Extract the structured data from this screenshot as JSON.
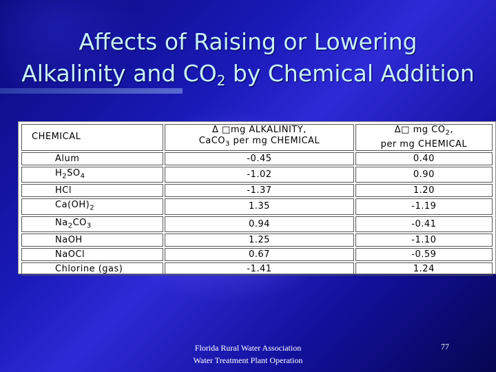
{
  "title": {
    "line1": "Affects of Raising or Lowering",
    "line2_pre": "Alkalinity and CO",
    "line2_sub": "2",
    "line2_post": " by Chemical Addition"
  },
  "table": {
    "headers": {
      "chemical": "CHEMICAL",
      "alkalinity_line1": "Δ □mg ALKALINITY,",
      "alkalinity_line2_pre": "CaCO",
      "alkalinity_line2_sub": "3",
      "alkalinity_line2_post": " per mg CHEMICAL",
      "co2_line1_pre": "Δ□ mg CO",
      "co2_line1_sub": "2",
      "co2_line1_post": ",",
      "co2_line2": "per mg CHEMICAL"
    },
    "rows": [
      {
        "chemical": "Alum",
        "alkalinity": "-0.45",
        "co2": "0.40"
      },
      {
        "chemical_pre": "H",
        "chemical_sub1": "2",
        "chemical_mid": "SO",
        "chemical_sub2": "4",
        "alkalinity": "-1.02",
        "co2": "0.90"
      },
      {
        "chemical": "HCl",
        "alkalinity": "-1.37",
        "co2": "1.20"
      },
      {
        "chemical_pre": "Ca(OH)",
        "chemical_sub1": "2",
        "alkalinity": "1.35",
        "co2": "-1.19"
      },
      {
        "chemical_pre": "Na",
        "chemical_sub1": "2",
        "chemical_mid": "CO",
        "chemical_sub2": "3",
        "alkalinity": "0.94",
        "co2": "-0.41"
      },
      {
        "chemical": "NaOH",
        "alkalinity": "1.25",
        "co2": "-1.10"
      },
      {
        "chemical": "NaOCl",
        "alkalinity": "0.67",
        "co2": "-0.59"
      },
      {
        "chemical": "Chlorine (gas)",
        "alkalinity": "-1.41",
        "co2": "1.24"
      }
    ]
  },
  "footer": {
    "line1": "Florida Rural Water Association",
    "line2": "Water Treatment Plant Operation",
    "page_number": "77"
  }
}
